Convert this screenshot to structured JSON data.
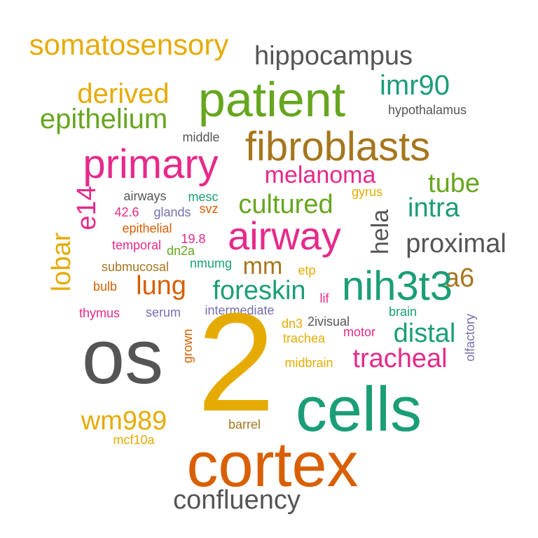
{
  "palette": {
    "green": "#1b9e77",
    "orange": "#d95f02",
    "purple": "#7570b3",
    "magenta": "#e7298a",
    "lime": "#66a61e",
    "gold": "#e6ab02",
    "brown": "#a6761d",
    "gray": "#555555"
  },
  "words": [
    {
      "text": "somatosensory",
      "color": "#e6ab02"
    },
    {
      "text": "hippocampus",
      "color": "#555555"
    },
    {
      "text": "patient",
      "color": "#66a61e"
    },
    {
      "text": "derived",
      "color": "#e6ab02"
    },
    {
      "text": "imr90",
      "color": "#1b9e77"
    },
    {
      "text": "epithelium",
      "color": "#66a61e"
    },
    {
      "text": "hypothalamus",
      "color": "#555555"
    },
    {
      "text": "middle",
      "color": "#555555"
    },
    {
      "text": "fibroblasts",
      "color": "#a6761d"
    },
    {
      "text": "primary",
      "color": "#e7298a"
    },
    {
      "text": "melanoma",
      "color": "#e7298a"
    },
    {
      "text": "tube",
      "color": "#66a61e"
    },
    {
      "text": "airways",
      "color": "#555555"
    },
    {
      "text": "mesc",
      "color": "#1b9e77"
    },
    {
      "text": "gyrus",
      "color": "#e6ab02"
    },
    {
      "text": "cultured",
      "color": "#66a61e"
    },
    {
      "text": "intra",
      "color": "#1b9e77"
    },
    {
      "text": "e14",
      "color": "#e7298a"
    },
    {
      "text": "42.6",
      "color": "#e7298a"
    },
    {
      "text": "glands",
      "color": "#7570b3"
    },
    {
      "text": "svz",
      "color": "#d95f02"
    },
    {
      "text": "hela",
      "color": "#555555"
    },
    {
      "text": "lobar",
      "color": "#e6ab02"
    },
    {
      "text": "epithelial",
      "color": "#d95f02"
    },
    {
      "text": "airway",
      "color": "#e7298a"
    },
    {
      "text": "19.8",
      "color": "#e7298a"
    },
    {
      "text": "proximal",
      "color": "#555555"
    },
    {
      "text": "temporal",
      "color": "#e7298a"
    },
    {
      "text": "dn2a",
      "color": "#66a61e"
    },
    {
      "text": "submucosal",
      "color": "#a6761d"
    },
    {
      "text": "nmumg",
      "color": "#1b9e77"
    },
    {
      "text": "mm",
      "color": "#a6761d"
    },
    {
      "text": "etp",
      "color": "#e6ab02"
    },
    {
      "text": "a6",
      "color": "#a6761d"
    },
    {
      "text": "bulb",
      "color": "#d95f02"
    },
    {
      "text": "lung",
      "color": "#d95f02"
    },
    {
      "text": "foreskin",
      "color": "#1b9e77"
    },
    {
      "text": "lif",
      "color": "#e7298a"
    },
    {
      "text": "nih3t3",
      "color": "#1b9e77"
    },
    {
      "text": "thymus",
      "color": "#e7298a"
    },
    {
      "text": "serum",
      "color": "#7570b3"
    },
    {
      "text": "intermediate",
      "color": "#7570b3"
    },
    {
      "text": "brain",
      "color": "#1b9e77"
    },
    {
      "text": "olfactory",
      "color": "#7570b3"
    },
    {
      "text": "dn3",
      "color": "#e6ab02"
    },
    {
      "text": "2ivisual",
      "color": "#555555"
    },
    {
      "text": "distal",
      "color": "#1b9e77"
    },
    {
      "text": "os",
      "color": "#555555"
    },
    {
      "text": "grown",
      "color": "#d95f02"
    },
    {
      "text": "2",
      "color": "#e6ab02"
    },
    {
      "text": "trachea",
      "color": "#e6ab02"
    },
    {
      "text": "motor",
      "color": "#e7298a"
    },
    {
      "text": "midbrain",
      "color": "#e6ab02"
    },
    {
      "text": "tracheal",
      "color": "#e7298a"
    },
    {
      "text": "cells",
      "color": "#1b9e77"
    },
    {
      "text": "wm989",
      "color": "#e6ab02"
    },
    {
      "text": "barrel",
      "color": "#a6761d"
    },
    {
      "text": "mcf10a",
      "color": "#e6ab02"
    },
    {
      "text": "cortex",
      "color": "#d95f02"
    },
    {
      "text": "confluency",
      "color": "#555555"
    }
  ]
}
